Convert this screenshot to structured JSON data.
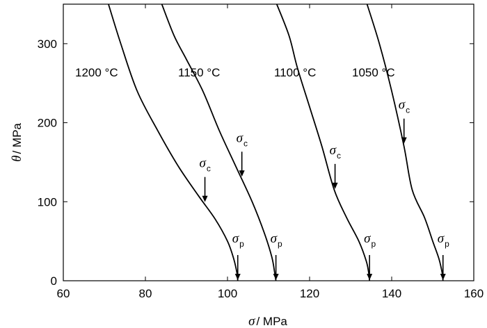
{
  "chart_data": {
    "type": "line",
    "xlabel": {
      "symbol": "σ",
      "unit": "/ MPa"
    },
    "ylabel": {
      "symbol": "θ",
      "unit": "/ MPa"
    },
    "xlim": [
      60,
      160
    ],
    "ylim": [
      0,
      350
    ],
    "xticks": [
      "60",
      "80",
      "100",
      "120",
      "140",
      "160"
    ],
    "yticks": [
      "0",
      "100",
      "200",
      "300"
    ],
    "grid": false,
    "series": [
      {
        "name": "1200 °C",
        "points": [
          [
            71,
            350
          ],
          [
            74,
            300
          ],
          [
            78,
            240
          ],
          [
            83,
            190
          ],
          [
            88,
            145
          ],
          [
            93,
            107
          ],
          [
            97,
            78
          ],
          [
            100,
            50
          ],
          [
            101.5,
            28
          ],
          [
            102.3,
            10
          ],
          [
            102.5,
            0
          ]
        ],
        "sigma_c": 94.5,
        "sigma_p": 102.5
      },
      {
        "name": "1150 °C",
        "points": [
          [
            84,
            350
          ],
          [
            87,
            310
          ],
          [
            90,
            280
          ],
          [
            94,
            240
          ],
          [
            98,
            190
          ],
          [
            102,
            145
          ],
          [
            106,
            100
          ],
          [
            109,
            60
          ],
          [
            110.8,
            30
          ],
          [
            111.5,
            10
          ],
          [
            111.8,
            0
          ]
        ],
        "sigma_c": 103.5,
        "sigma_p": 111.8
      },
      {
        "name": "1100 °C",
        "points": [
          [
            112,
            350
          ],
          [
            115,
            310
          ],
          [
            117,
            270
          ],
          [
            120,
            220
          ],
          [
            123,
            170
          ],
          [
            126,
            115
          ],
          [
            129,
            80
          ],
          [
            132,
            50
          ],
          [
            133.8,
            25
          ],
          [
            134.4,
            10
          ],
          [
            134.6,
            0
          ]
        ],
        "sigma_c": 126.2,
        "sigma_p": 134.6
      },
      {
        "name": "1050 °C",
        "points": [
          [
            134,
            350
          ],
          [
            137,
            300
          ],
          [
            140,
            240
          ],
          [
            143,
            170
          ],
          [
            145,
            115
          ],
          [
            148,
            80
          ],
          [
            150,
            50
          ],
          [
            151.5,
            28
          ],
          [
            152.3,
            10
          ],
          [
            152.5,
            0
          ]
        ],
        "sigma_c": 143,
        "sigma_p": 152.5
      }
    ],
    "annotations": {
      "sigma_c_symbol": "σ",
      "sigma_c_sub": "c",
      "sigma_p_symbol": "σ",
      "sigma_p_sub": "p"
    }
  }
}
